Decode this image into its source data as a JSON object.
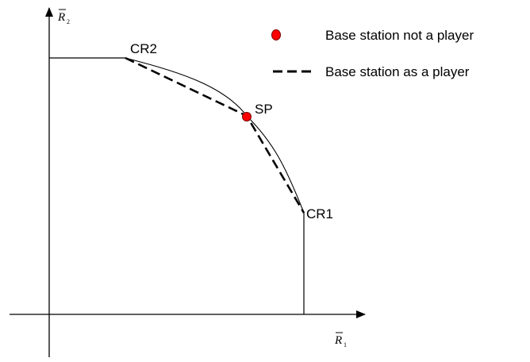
{
  "axes": {
    "x_label": "R",
    "x_subscript": "1",
    "y_label": "R",
    "y_subscript": "2"
  },
  "points": {
    "cr1": "CR1",
    "cr2": "CR2",
    "sp": "SP"
  },
  "legend": {
    "items": [
      {
        "label": "Base station not a player",
        "marker": "red-dot",
        "color": "#ff0000"
      },
      {
        "label": "Base station as a player",
        "marker": "dashed-line",
        "color": "#000000"
      }
    ]
  },
  "colors": {
    "line": "#000000",
    "sp_fill": "#ff0000",
    "sp_stroke": "#7a0000"
  }
}
